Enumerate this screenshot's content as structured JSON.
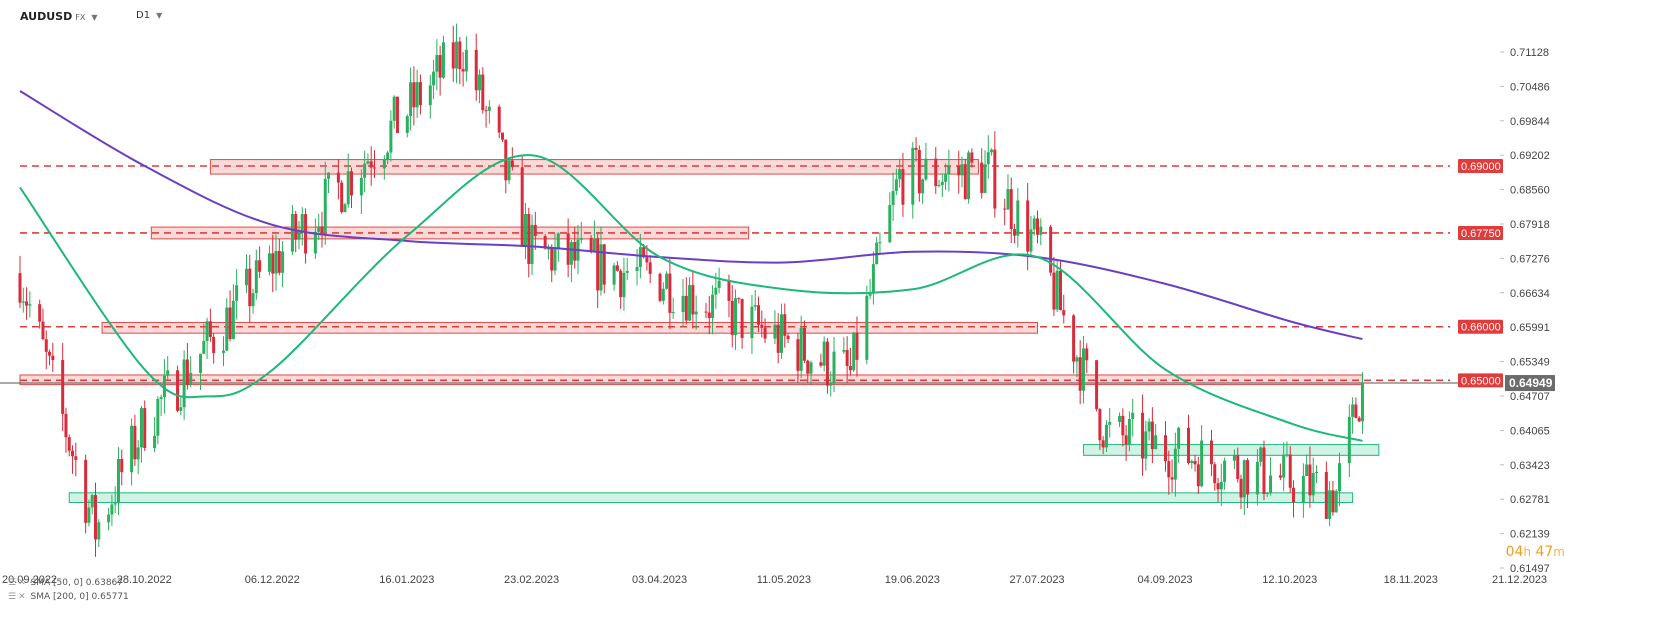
{
  "header": {
    "symbol": "AUDUSD",
    "market": "FX",
    "timeframe": "D1"
  },
  "indicators": [
    {
      "label": "SMA [50, 0]",
      "value": "0.63867",
      "color": "#1db87a"
    },
    {
      "label": "SMA [200, 0]",
      "value": "0.65771",
      "color": "#6a3fc4"
    }
  ],
  "timer": {
    "hours": "04",
    "hours_unit": "h",
    "minutes": "47",
    "minutes_unit": "m"
  },
  "chart_data": {
    "type": "candlestick",
    "price_ticks": [
      "0.71128",
      "0.70486",
      "0.69844",
      "0.69202",
      "0.68560",
      "0.67918",
      "0.67276",
      "0.66634",
      "0.65991",
      "0.65349",
      "0.64707",
      "0.64065",
      "0.63423",
      "0.62781",
      "0.62139",
      "0.61497"
    ],
    "date_ticks": [
      "20.09.2022",
      "28.10.2022",
      "06.12.2022",
      "16.01.2023",
      "23.02.2023",
      "03.04.2023",
      "11.05.2023",
      "19.06.2023",
      "27.07.2023",
      "04.09.2023",
      "12.10.2023",
      "18.11.2023",
      "21.12.2023"
    ],
    "ylim": [
      0.61497,
      0.71128
    ],
    "current_price": "0.64949",
    "levels": [
      {
        "label": "0.69000",
        "value": 0.69
      },
      {
        "label": "0.67750",
        "value": 0.6775
      },
      {
        "label": "0.66000",
        "value": 0.66
      },
      {
        "label": "0.65000",
        "value": 0.65
      }
    ],
    "key_points": [
      {
        "date": "20.09.2022",
        "close": 0.67
      },
      {
        "date": "13.10.2022",
        "close": 0.622
      },
      {
        "date": "28.10.2022",
        "close": 0.642
      },
      {
        "date": "06.12.2022",
        "close": 0.672
      },
      {
        "date": "02.02.2023",
        "close": 0.712
      },
      {
        "date": "23.02.2023",
        "close": 0.674
      },
      {
        "date": "03.04.2023",
        "close": 0.669
      },
      {
        "date": "31.05.2023",
        "close": 0.651
      },
      {
        "date": "15.06.2023",
        "close": 0.688
      },
      {
        "date": "12.07.2023",
        "close": 0.689
      },
      {
        "date": "27.07.2023",
        "close": 0.675
      },
      {
        "date": "17.08.2023",
        "close": 0.64
      },
      {
        "date": "26.10.2023",
        "close": 0.629
      },
      {
        "date": "03.11.2023",
        "close": 0.6495
      }
    ],
    "sma50": [
      {
        "date": "20.09.2022",
        "value": 0.686
      },
      {
        "date": "28.10.2022",
        "value": 0.652
      },
      {
        "date": "16.11.2022",
        "value": 0.647
      },
      {
        "date": "06.12.2022",
        "value": 0.652
      },
      {
        "date": "16.01.2023",
        "value": 0.677
      },
      {
        "date": "23.02.2023",
        "value": 0.692
      },
      {
        "date": "03.04.2023",
        "value": 0.673
      },
      {
        "date": "11.05.2023",
        "value": 0.667
      },
      {
        "date": "19.06.2023",
        "value": 0.667
      },
      {
        "date": "27.07.2023",
        "value": 0.673
      },
      {
        "date": "04.09.2023",
        "value": 0.652
      },
      {
        "date": "12.10.2023",
        "value": 0.642
      },
      {
        "date": "03.11.2023",
        "value": 0.6387
      }
    ],
    "sma200": [
      {
        "date": "20.09.2022",
        "value": 0.704
      },
      {
        "date": "28.10.2022",
        "value": 0.69
      },
      {
        "date": "06.12.2022",
        "value": 0.679
      },
      {
        "date": "16.01.2023",
        "value": 0.676
      },
      {
        "date": "23.02.2023",
        "value": 0.675
      },
      {
        "date": "03.04.2023",
        "value": 0.673
      },
      {
        "date": "11.05.2023",
        "value": 0.672
      },
      {
        "date": "19.06.2023",
        "value": 0.674
      },
      {
        "date": "27.07.2023",
        "value": 0.673
      },
      {
        "date": "04.09.2023",
        "value": 0.668
      },
      {
        "date": "12.10.2023",
        "value": 0.661
      },
      {
        "date": "03.11.2023",
        "value": 0.6577
      }
    ],
    "zones": [
      {
        "color": "red",
        "from": "17.11.2022",
        "to": "09.07.2023",
        "low": 0.6885,
        "high": 0.6912
      },
      {
        "color": "red",
        "from": "30.10.2022",
        "to": "30.04.2023",
        "low": 0.6764,
        "high": 0.6786
      },
      {
        "color": "red",
        "from": "15.10.2022",
        "to": "27.07.2023",
        "low": 0.6588,
        "high": 0.6608
      },
      {
        "color": "red",
        "from": "20.09.2022",
        "to": "03.11.2023",
        "low": 0.6492,
        "high": 0.651
      },
      {
        "color": "green",
        "from": "10.08.2023",
        "to": "08.11.2023",
        "low": 0.636,
        "high": 0.638
      },
      {
        "color": "green",
        "from": "05.10.2022",
        "to": "31.10.2023",
        "low": 0.6272,
        "high": 0.629
      }
    ]
  }
}
